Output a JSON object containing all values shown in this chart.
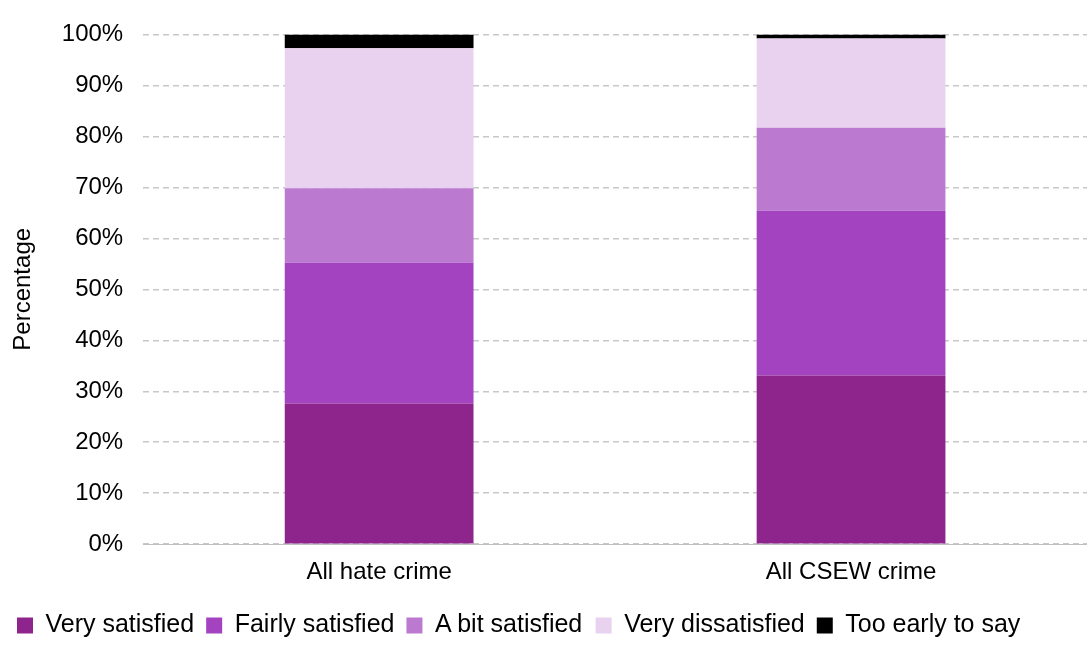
{
  "chart_data": {
    "type": "bar",
    "stacked": true,
    "categories": [
      "All hate crime",
      "All CSEW crime"
    ],
    "ylabel": "Percentage",
    "ylim": [
      0,
      100
    ],
    "yticks": [
      {
        "value": 0,
        "label": "0%"
      },
      {
        "value": 10,
        "label": "10%"
      },
      {
        "value": 20,
        "label": "20%"
      },
      {
        "value": 30,
        "label": "30%"
      },
      {
        "value": 40,
        "label": "40%"
      },
      {
        "value": 50,
        "label": "50%"
      },
      {
        "value": 60,
        "label": "60%"
      },
      {
        "value": 70,
        "label": "70%"
      },
      {
        "value": 80,
        "label": "80%"
      },
      {
        "value": 90,
        "label": "90%"
      },
      {
        "value": 100,
        "label": "100%"
      }
    ],
    "grid": "y",
    "legend": "bottom",
    "series": [
      {
        "name": "Very satisfied",
        "color": "#8e258c",
        "values": [
          27.6,
          33.1
        ]
      },
      {
        "name": "Fairly satisfied",
        "color": "#a343c0",
        "values": [
          27.6,
          32.3
        ]
      },
      {
        "name": "A bit satisfied",
        "color": "#bb79cf",
        "values": [
          14.6,
          16.3
        ]
      },
      {
        "name": "Very dissatisfied",
        "color": "#e8d2ef",
        "values": [
          27.5,
          17.5
        ]
      },
      {
        "name": "Too early to say",
        "color": "#000000",
        "values": [
          2.7,
          0.8
        ]
      }
    ]
  }
}
